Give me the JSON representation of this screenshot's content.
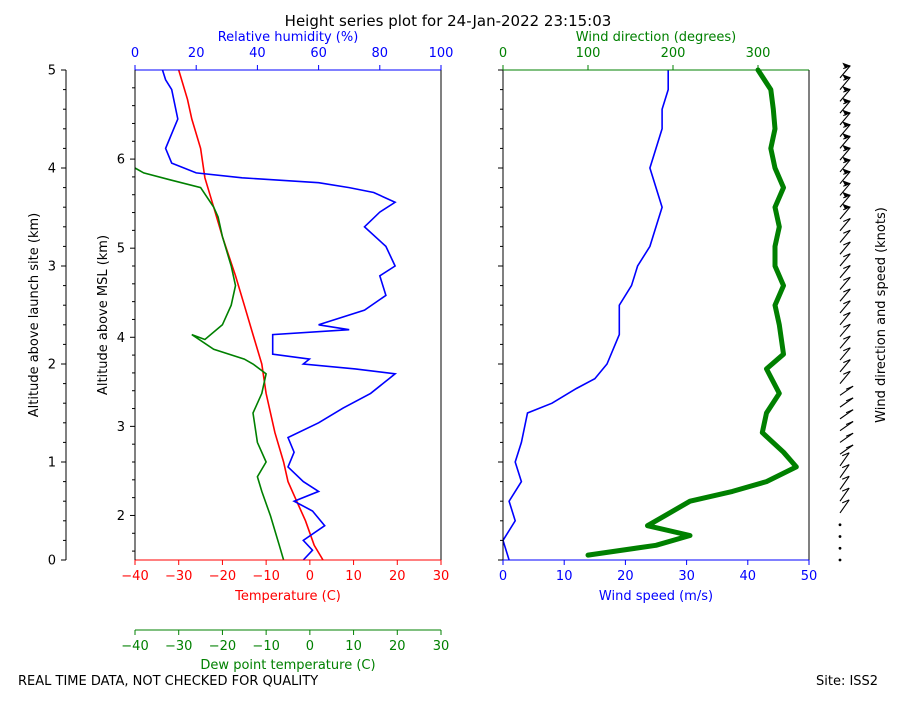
{
  "title": "Height series plot for 24-Jan-2022 23:15:03",
  "footer": {
    "left": "REAL TIME DATA, NOT CHECKED FOR QUALITY",
    "right": "Site: ISS2"
  },
  "colors": {
    "temperature": "#ff0000",
    "dewpoint": "#008000",
    "humidity": "#0000ff",
    "wind_speed": "#0000ff",
    "wind_direction": "#008000",
    "barbs": "#000000"
  },
  "chart_data": [
    {
      "type": "line",
      "panel": "thermodynamic",
      "title": "Height series plot for 24-Jan-2022 23:15:03",
      "y_axes": {
        "left": {
          "label": "Altitude above launch site (km)",
          "ylim": [
            0,
            5
          ],
          "ticks": [
            "0",
            "1",
            "2",
            "3",
            "4",
            "5"
          ]
        },
        "right_inner": {
          "label": "Altitude above MSL (km)",
          "ylim": [
            1.5,
            7.0
          ],
          "ticks": [
            "2",
            "3",
            "4",
            "5",
            "6"
          ]
        }
      },
      "x_axes": {
        "temperature": {
          "label": "Temperature (C)",
          "xlim": [
            -40,
            30
          ],
          "ticks": [
            "-40",
            "-30",
            "-20",
            "-10",
            "0",
            "10",
            "20",
            "30"
          ]
        },
        "dewpoint": {
          "label": "Dew point temperature (C)",
          "xlim": [
            -40,
            30
          ],
          "ticks": [
            "-40",
            "-30",
            "-20",
            "-10",
            "0",
            "10",
            "20",
            "30"
          ]
        },
        "humidity": {
          "label": "Relative humidity (%)",
          "xlim": [
            0,
            100
          ],
          "ticks": [
            "0",
            "20",
            "40",
            "60",
            "80",
            "100"
          ]
        }
      },
      "series": [
        {
          "name": "Temperature",
          "axis": "temperature",
          "color": "#ff0000",
          "points": [
            [
              3,
              0
            ],
            [
              1,
              0.15
            ],
            [
              -1,
              0.4
            ],
            [
              -3,
              0.6
            ],
            [
              -5,
              0.8
            ],
            [
              -6,
              1.0
            ],
            [
              -8,
              1.3
            ],
            [
              -10,
              1.7
            ],
            [
              -11,
              2.0
            ],
            [
              -13,
              2.3
            ],
            [
              -15,
              2.6
            ],
            [
              -17,
              2.9
            ],
            [
              -20,
              3.3
            ],
            [
              -22,
              3.6
            ],
            [
              -24,
              3.9
            ],
            [
              -25,
              4.2
            ],
            [
              -27,
              4.5
            ],
            [
              -28,
              4.7
            ],
            [
              -30,
              5.0
            ]
          ]
        },
        {
          "name": "Dew point",
          "axis": "dewpoint",
          "color": "#008000",
          "points": [
            [
              -6,
              0
            ],
            [
              -7,
              0.15
            ],
            [
              -8,
              0.3
            ],
            [
              -9,
              0.45
            ],
            [
              -11,
              0.7
            ],
            [
              -12,
              0.85
            ],
            [
              -10,
              1.0
            ],
            [
              -12,
              1.2
            ],
            [
              -13,
              1.5
            ],
            [
              -11,
              1.7
            ],
            [
              -10,
              1.9
            ],
            [
              -13,
              2.0
            ],
            [
              -15,
              2.05
            ],
            [
              -22,
              2.15
            ],
            [
              -27,
              2.3
            ],
            [
              -24,
              2.25
            ],
            [
              -20,
              2.4
            ],
            [
              -18,
              2.6
            ],
            [
              -17,
              2.8
            ],
            [
              -18,
              3.0
            ],
            [
              -20,
              3.3
            ],
            [
              -21,
              3.5
            ],
            [
              -22,
              3.6
            ],
            [
              -25,
              3.8
            ],
            [
              -32,
              3.88
            ],
            [
              -38,
              3.95
            ],
            [
              -40,
              4.0
            ]
          ]
        },
        {
          "name": "Relative humidity",
          "axis": "humidity",
          "color": "#0000ff",
          "points": [
            [
              55,
              0
            ],
            [
              58,
              0.1
            ],
            [
              55,
              0.2
            ],
            [
              62,
              0.35
            ],
            [
              58,
              0.5
            ],
            [
              52,
              0.6
            ],
            [
              60,
              0.7
            ],
            [
              55,
              0.8
            ],
            [
              50,
              0.95
            ],
            [
              52,
              1.1
            ],
            [
              50,
              1.25
            ],
            [
              60,
              1.4
            ],
            [
              68,
              1.55
            ],
            [
              77,
              1.7
            ],
            [
              83,
              1.85
            ],
            [
              85,
              1.9
            ],
            [
              72,
              1.95
            ],
            [
              55,
              2.0
            ],
            [
              57,
              2.05
            ],
            [
              45,
              2.1
            ],
            [
              45,
              2.3
            ],
            [
              70,
              2.35
            ],
            [
              60,
              2.4
            ],
            [
              75,
              2.55
            ],
            [
              82,
              2.7
            ],
            [
              80,
              2.9
            ],
            [
              85,
              3.0
            ],
            [
              82,
              3.2
            ],
            [
              75,
              3.4
            ],
            [
              80,
              3.55
            ],
            [
              85,
              3.65
            ],
            [
              78,
              3.75
            ],
            [
              70,
              3.8
            ],
            [
              60,
              3.85
            ],
            [
              35,
              3.9
            ],
            [
              20,
              3.95
            ],
            [
              12,
              4.05
            ],
            [
              10,
              4.2
            ],
            [
              14,
              4.5
            ],
            [
              12,
              4.8
            ],
            [
              10,
              4.9
            ],
            [
              9,
              5.0
            ]
          ]
        }
      ]
    },
    {
      "type": "line",
      "panel": "wind",
      "x_axes": {
        "wind_speed": {
          "label": "Wind speed (m/s)",
          "xlim": [
            0,
            50
          ],
          "ticks": [
            "0",
            "10",
            "20",
            "30",
            "40",
            "50"
          ]
        },
        "wind_direction": {
          "label": "Wind direction (degrees)",
          "xlim": [
            0,
            360
          ],
          "ticks": [
            "0",
            "100",
            "200",
            "300"
          ]
        }
      },
      "barbs_label": "Wind direction and speed (knots)",
      "series": [
        {
          "name": "Wind speed",
          "axis": "wind_speed",
          "color": "#0000ff",
          "points": [
            [
              1,
              0
            ],
            [
              0,
              0.2
            ],
            [
              2,
              0.4
            ],
            [
              1,
              0.6
            ],
            [
              3,
              0.8
            ],
            [
              2,
              1.0
            ],
            [
              3,
              1.2
            ],
            [
              4,
              1.5
            ],
            [
              8,
              1.6
            ],
            [
              12,
              1.75
            ],
            [
              15,
              1.85
            ],
            [
              17,
              2.0
            ],
            [
              19,
              2.3
            ],
            [
              19,
              2.6
            ],
            [
              21,
              2.8
            ],
            [
              22,
              3.0
            ],
            [
              24,
              3.2
            ],
            [
              25,
              3.4
            ],
            [
              26,
              3.6
            ],
            [
              25,
              3.8
            ],
            [
              24,
              4.0
            ],
            [
              25,
              4.2
            ],
            [
              26,
              4.4
            ],
            [
              26,
              4.6
            ],
            [
              27,
              4.8
            ],
            [
              27,
              5.0
            ]
          ]
        },
        {
          "name": "Wind direction",
          "axis": "wind_direction",
          "color": "#008000",
          "points": [
            [
              100,
              0.05
            ],
            [
              180,
              0.15
            ],
            [
              220,
              0.25
            ],
            [
              170,
              0.35
            ],
            [
              190,
              0.45
            ],
            [
              220,
              0.6
            ],
            [
              270,
              0.7
            ],
            [
              310,
              0.8
            ],
            [
              345,
              0.95
            ],
            [
              330,
              1.1
            ],
            [
              305,
              1.3
            ],
            [
              310,
              1.5
            ],
            [
              325,
              1.7
            ],
            [
              310,
              1.95
            ],
            [
              330,
              2.1
            ],
            [
              325,
              2.4
            ],
            [
              320,
              2.6
            ],
            [
              330,
              2.8
            ],
            [
              320,
              3.0
            ],
            [
              320,
              3.2
            ],
            [
              325,
              3.4
            ],
            [
              320,
              3.6
            ],
            [
              330,
              3.8
            ],
            [
              320,
              4.0
            ],
            [
              315,
              4.2
            ],
            [
              320,
              4.4
            ],
            [
              318,
              4.6
            ],
            [
              315,
              4.8
            ],
            [
              300,
              5.0
            ]
          ]
        }
      ]
    }
  ]
}
